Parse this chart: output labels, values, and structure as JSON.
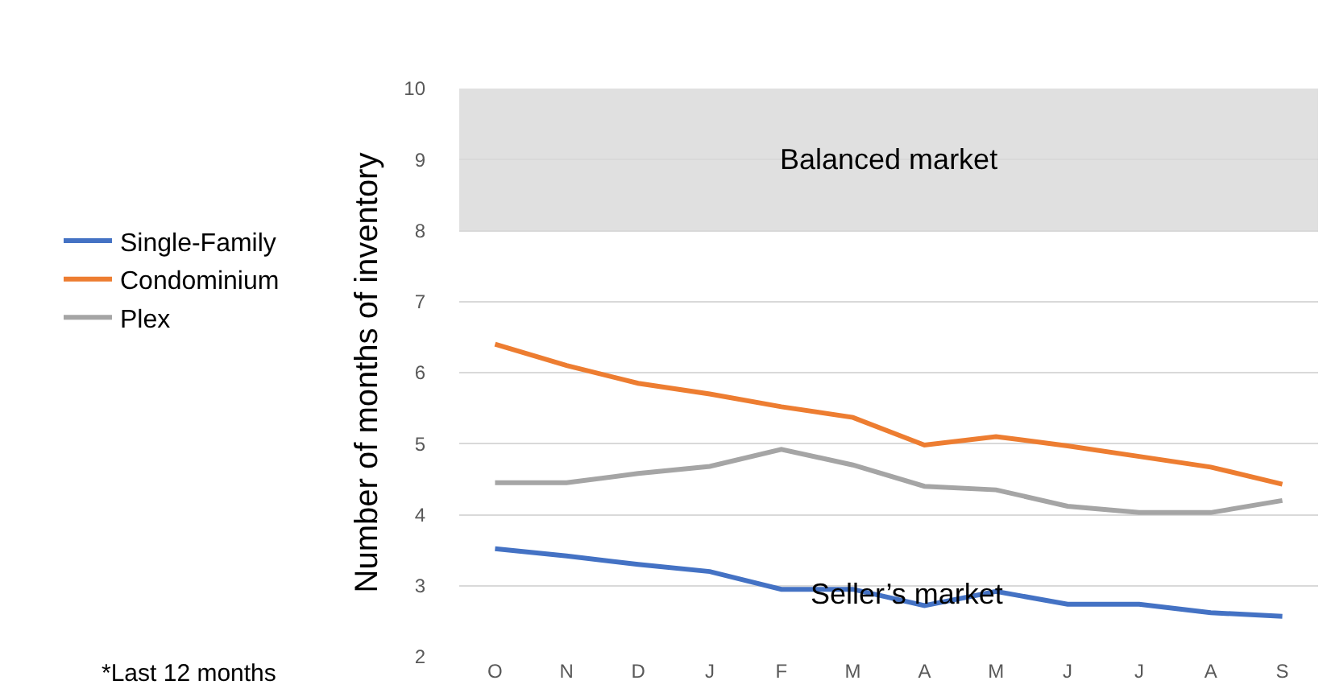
{
  "chart_data": {
    "type": "line",
    "ylabel": "Number of months of inventory",
    "categories": [
      "O",
      "N",
      "D",
      "J",
      "F",
      "M",
      "A",
      "M",
      "J",
      "J",
      "A",
      "S"
    ],
    "series": [
      {
        "name": "Single-Family",
        "color": "#4472c4",
        "values": [
          3.52,
          3.42,
          3.3,
          3.2,
          2.95,
          2.95,
          2.72,
          2.92,
          2.74,
          2.74,
          2.62,
          2.57
        ]
      },
      {
        "name": "Condominium",
        "color": "#ed7d31",
        "values": [
          6.4,
          6.1,
          5.85,
          5.7,
          5.52,
          5.37,
          4.98,
          5.1,
          4.97,
          4.82,
          4.67,
          4.43
        ]
      },
      {
        "name": "Plex",
        "color": "#a5a5a5",
        "values": [
          4.45,
          4.45,
          4.58,
          4.68,
          4.92,
          4.7,
          4.4,
          4.35,
          4.12,
          4.03,
          4.03,
          4.2
        ]
      }
    ],
    "ylim": [
      2,
      10
    ],
    "yticks": [
      2,
      3,
      4,
      5,
      6,
      7,
      8,
      9,
      10
    ],
    "grid": "y",
    "legend": "left",
    "marker": "none",
    "bands": [
      {
        "axis": "y",
        "from": 8,
        "to": 10,
        "label": "Balanced market",
        "color": "#e0e0e0"
      }
    ],
    "annotations": [
      "Seller’s market",
      "*Last 12 months"
    ]
  }
}
